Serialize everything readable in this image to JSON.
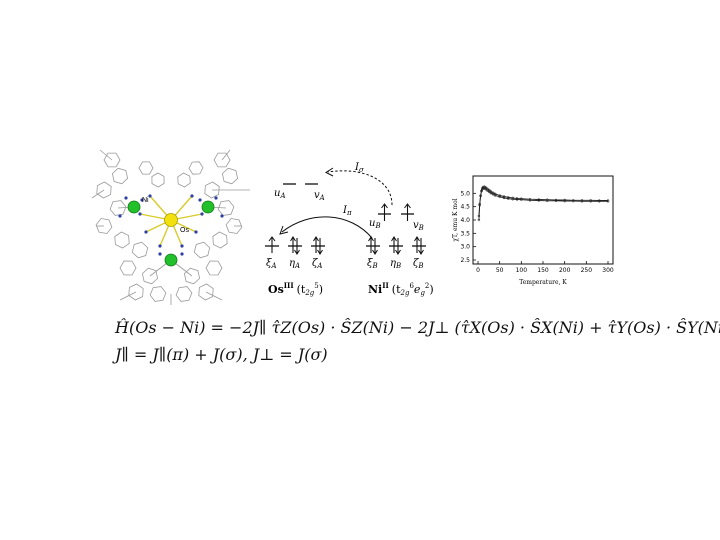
{
  "molecule": {
    "atom_labels": {
      "ni": "Ni",
      "os": "Os"
    },
    "colors": {
      "ni": "#22c02a",
      "os": "#f2e10f",
      "frame": "#9a9a9a",
      "bond": "#d8cc2a",
      "n_atom": "#2f3fa3"
    }
  },
  "orbital_diagram": {
    "left_upper": {
      "u": "u",
      "u_sub": "A",
      "v": "v",
      "v_sub": "A"
    },
    "right_upper": {
      "u": "u",
      "u_sub": "B",
      "v": "v",
      "v_sub": "B"
    },
    "left_lower": [
      {
        "sym": "ξ",
        "sub": "A"
      },
      {
        "sym": "η",
        "sub": "A"
      },
      {
        "sym": "ζ",
        "sub": "A"
      }
    ],
    "right_lower": [
      {
        "sym": "ξ",
        "sub": "B"
      },
      {
        "sym": "η",
        "sub": "B"
      },
      {
        "sym": "ζ",
        "sub": "B"
      }
    ],
    "exchange_sigma": {
      "sym": "I",
      "sub": "σ"
    },
    "exchange_pi": {
      "sym": "I",
      "sub": "π"
    },
    "os_label": {
      "el": "Os",
      "ox": "III",
      "config": "(t",
      "config_sub": "2g",
      "config_sup": "5",
      "close": ")"
    },
    "ni_label": {
      "el": "Ni",
      "ox": "II",
      "config": "(t",
      "t_sub": "2g",
      "t_sup": "6",
      "e": "e",
      "e_sub": "g",
      "e_sup": "2",
      "close": ")"
    }
  },
  "chart_data": {
    "type": "scatter",
    "xlabel": "Temperature, K",
    "ylabel": "χT, emu K mol",
    "xlim": [
      0,
      300
    ],
    "ylim": [
      2.5,
      5.5
    ],
    "xticks": [
      0,
      50,
      100,
      150,
      200,
      250,
      300
    ],
    "yticks": [
      2.5,
      3.0,
      3.5,
      4.0,
      4.5,
      5.0
    ],
    "series": [
      {
        "points": [
          [
            2,
            4.0
          ],
          [
            4,
            4.55
          ],
          [
            6,
            4.9
          ],
          [
            8,
            5.1
          ],
          [
            10,
            5.2
          ],
          [
            12,
            5.24
          ],
          [
            15,
            5.25
          ],
          [
            18,
            5.22
          ],
          [
            22,
            5.17
          ],
          [
            26,
            5.12
          ],
          [
            30,
            5.07
          ],
          [
            35,
            5.02
          ],
          [
            40,
            4.98
          ],
          [
            50,
            4.92
          ],
          [
            60,
            4.88
          ],
          [
            70,
            4.85
          ],
          [
            80,
            4.83
          ],
          [
            90,
            4.81
          ],
          [
            100,
            4.8
          ],
          [
            120,
            4.78
          ],
          [
            140,
            4.77
          ],
          [
            160,
            4.76
          ],
          [
            180,
            4.75
          ],
          [
            200,
            4.75
          ],
          [
            220,
            4.74
          ],
          [
            240,
            4.74
          ],
          [
            260,
            4.74
          ],
          [
            280,
            4.73
          ],
          [
            300,
            4.73
          ]
        ]
      },
      {
        "points": [
          [
            2,
            4.15
          ],
          [
            4,
            4.6
          ],
          [
            6,
            4.92
          ],
          [
            8,
            5.08
          ],
          [
            10,
            5.15
          ],
          [
            12,
            5.18
          ],
          [
            15,
            5.18
          ],
          [
            18,
            5.15
          ],
          [
            22,
            5.1
          ],
          [
            26,
            5.05
          ],
          [
            30,
            5.0
          ],
          [
            35,
            4.96
          ],
          [
            40,
            4.92
          ],
          [
            50,
            4.87
          ],
          [
            60,
            4.83
          ],
          [
            70,
            4.8
          ],
          [
            80,
            4.78
          ],
          [
            90,
            4.77
          ],
          [
            100,
            4.76
          ],
          [
            120,
            4.74
          ],
          [
            140,
            4.73
          ],
          [
            160,
            4.72
          ],
          [
            180,
            4.72
          ],
          [
            200,
            4.71
          ],
          [
            220,
            4.71
          ],
          [
            240,
            4.7
          ],
          [
            260,
            4.7
          ],
          [
            280,
            4.7
          ],
          [
            300,
            4.7
          ]
        ]
      }
    ]
  },
  "equations": {
    "line1": "Ĥ(Os − Ni) = −2J∥ τ̂Z(Os) · ŜZ(Ni) − 2J⊥ (τ̂X(Os) · ŜX(Ni) + τ̂Y(Os) · ŜY(Ni))",
    "line2": "J∥ = J∥(π) + J(σ),  J⊥ = J(σ)"
  }
}
